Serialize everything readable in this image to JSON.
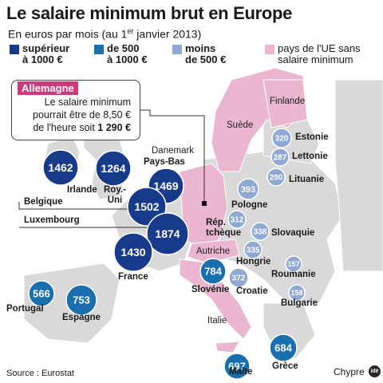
{
  "header": {
    "title": "Le salaire minimum brut en Europe",
    "subtitle_pre": "En euros par mois (au 1",
    "subtitle_sup": "er",
    "subtitle_post": " janvier 2013)"
  },
  "legend": [
    {
      "label_1": "supérieur",
      "label_2": "à 1000 €",
      "color": "#173a8a"
    },
    {
      "label_1": "de 500",
      "label_2": "à 1000 €",
      "color": "#1a6fae"
    },
    {
      "label_1": "moins",
      "label_2": "de 500 €",
      "color": "#8fa9d4"
    },
    {
      "label_1": "pays de l'UE sans",
      "label_2": "salaire minimum",
      "color": "#eab6d0"
    }
  ],
  "callout": {
    "heading": "Allemagne",
    "line1": "Le salaire minimum",
    "line2": "pourrait être de 8,50 €",
    "line3_pre": "de l'heure soit ",
    "line3_value": "1 290 €"
  },
  "countries": {
    "irlande": {
      "name": "Irlande",
      "value": "1462"
    },
    "royuni": {
      "name": "Roy.-\nUni",
      "value": "1264"
    },
    "paysbas": {
      "name": "Pays-Bas",
      "value": "1469"
    },
    "belgique": {
      "name": "Belgique",
      "value": "1502"
    },
    "luxembourg": {
      "name": "Luxembourg",
      "value": "1874"
    },
    "france": {
      "name": "France",
      "value": "1430"
    },
    "portugal": {
      "name": "Portugal",
      "value": "566"
    },
    "espagne": {
      "name": "Espagne",
      "value": "753"
    },
    "slovenie": {
      "name": "Slovénie",
      "value": "784"
    },
    "malte": {
      "name": "Malte",
      "value": "697"
    },
    "grece": {
      "name": "Grèce",
      "value": "684"
    },
    "estonie": {
      "name": "Estonie",
      "value": "320"
    },
    "lettonie": {
      "name": "Lettonie",
      "value": "287"
    },
    "lituanie": {
      "name": "Lituanie",
      "value": "290"
    },
    "pologne": {
      "name": "Pologne",
      "value": "393"
    },
    "reptcheque": {
      "name": "Rép.\ntchèque",
      "value": "312"
    },
    "slovaquie": {
      "name": "Slovaquie",
      "value": "338"
    },
    "hongrie": {
      "name": "Hongrie",
      "value": "335"
    },
    "croatie": {
      "name": "Croatie",
      "value": "372"
    },
    "roumanie": {
      "name": "Roumanie",
      "value": "157"
    },
    "bulgarie": {
      "name": "Bulgarie",
      "value": "158"
    }
  },
  "plain_labels": {
    "finlande": "Finlande",
    "suede": "Suède",
    "danemark": "Danemark",
    "autriche": "Autriche",
    "italie": "Italie"
  },
  "footer": {
    "source": "Source : Eurostat",
    "credit": "Chypre",
    "logo": "idé"
  },
  "colors": {
    "high": "#173a8a",
    "mid": "#1a6fae",
    "low": "#8fa9d4",
    "none": "#eab6d0",
    "land": "#d9d9d9",
    "sea": "#ffffff"
  }
}
